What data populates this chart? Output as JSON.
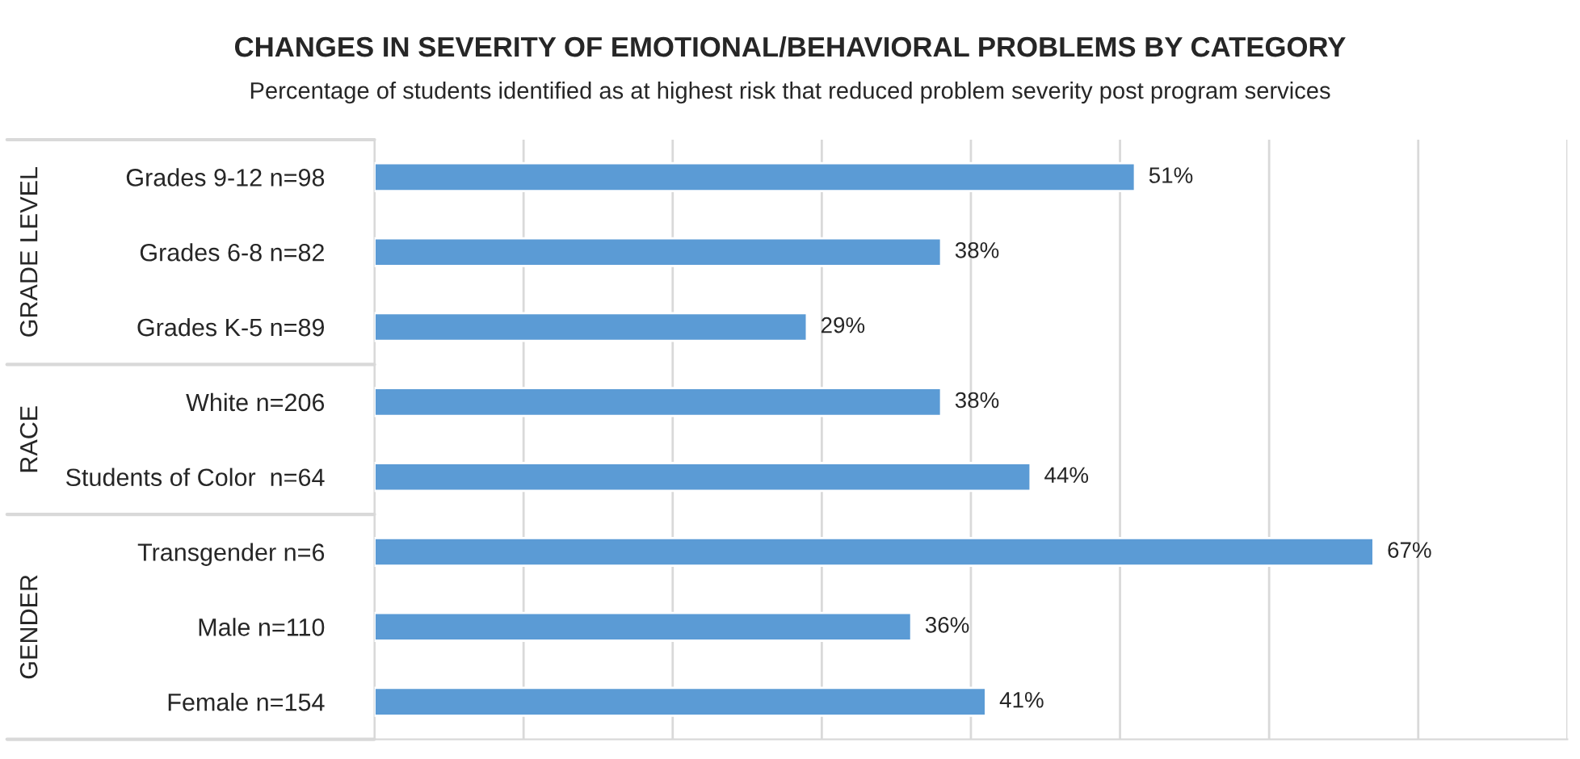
{
  "chart_data": {
    "type": "bar",
    "orientation": "horizontal",
    "title": "CHANGES IN SEVERITY OF EMOTIONAL/BEHAVIORAL PROBLEMS BY CATEGORY",
    "subtitle": "Percentage of students identified as at highest risk that reduced problem severity post program services",
    "categories": [
      "Grades 9-12 n=98",
      "Grades 6-8 n=82",
      "Grades K-5 n=89",
      "White n=206",
      "Students of Color  n=64",
      "Transgender n=6",
      "Male n=110",
      "Female n=154"
    ],
    "values": [
      51,
      38,
      29,
      38,
      44,
      67,
      36,
      41
    ],
    "value_labels": [
      "51%",
      "38%",
      "29%",
      "38%",
      "44%",
      "67%",
      "36%",
      "41%"
    ],
    "color": "#5b9bd5",
    "xlim": [
      0,
      80
    ],
    "xticks": [
      {
        "value": 0,
        "label": null
      },
      {
        "value": 10,
        "label": null
      },
      {
        "value": 20,
        "label": null
      },
      {
        "value": 30,
        "label": null
      },
      {
        "value": 40,
        "label": null
      },
      {
        "value": 50,
        "label": null
      },
      {
        "value": 60,
        "label": null
      },
      {
        "value": 70,
        "label": null
      },
      {
        "value": 80,
        "label": null
      }
    ],
    "tick_labels": "y",
    "grid": "x",
    "annotations": [
      "GRADE LEVEL",
      "RACE",
      "GENDER"
    ]
  }
}
